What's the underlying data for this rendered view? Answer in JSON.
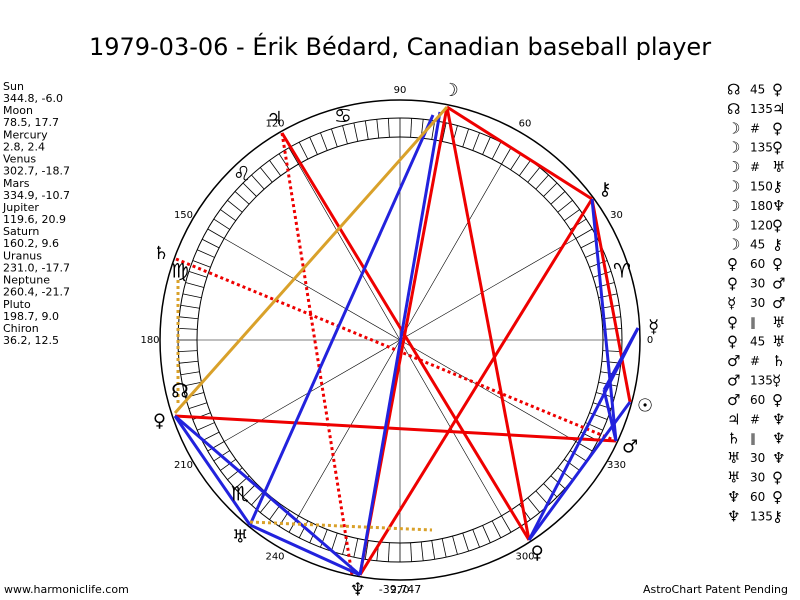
{
  "title": "1979-03-06 - Érik Bédard, Canadian baseball player",
  "planets": [
    {
      "name": "Sun",
      "coords": "344.8, -6.0",
      "glyph": "☉",
      "longitude": 344.8
    },
    {
      "name": "Moon",
      "coords": "78.5, 17.7",
      "glyph": "☽",
      "longitude": 78.5
    },
    {
      "name": "Mercury",
      "coords": "2.8, 2.4",
      "glyph": "☿",
      "longitude": 2.8
    },
    {
      "name": "Venus",
      "coords": "302.7, -18.7",
      "glyph": "♀",
      "longitude": 302.7
    },
    {
      "name": "Mars",
      "coords": "334.9, -10.7",
      "glyph": "♂",
      "longitude": 334.9
    },
    {
      "name": "Jupiter",
      "coords": "119.6, 20.9",
      "glyph": "♃",
      "longitude": 119.6
    },
    {
      "name": "Saturn",
      "coords": "160.2, 9.6",
      "glyph": "♄",
      "longitude": 160.2
    },
    {
      "name": "Uranus",
      "coords": "231.0, -17.7",
      "glyph": "♅",
      "longitude": 231.0
    },
    {
      "name": "Neptune",
      "coords": "260.4, -21.7",
      "glyph": "♆",
      "longitude": 260.4
    },
    {
      "name": "Pluto",
      "coords": "198.7, 9.0",
      "glyph": "♀",
      "longitude": 198.7
    },
    {
      "name": "Chiron",
      "coords": "36.2, 12.5",
      "glyph": "⚷",
      "longitude": 36.2
    }
  ],
  "degree_labels": [
    90,
    60,
    30,
    0,
    330,
    300,
    270,
    240,
    210,
    180,
    150,
    120
  ],
  "signs": [
    "♋",
    "♌",
    "♈",
    "♍",
    "♏",
    "☊"
  ],
  "aspects": [
    [
      "☊",
      "45",
      "♀"
    ],
    [
      "☊",
      "135",
      "♃"
    ],
    [
      "☽",
      "#",
      "♀"
    ],
    [
      "☽",
      "135",
      "♀"
    ],
    [
      "☽",
      "#",
      "♅"
    ],
    [
      "☽",
      "150",
      "⚷"
    ],
    [
      "☽",
      "180",
      "♆"
    ],
    [
      "☽",
      "120",
      "♀"
    ],
    [
      "☽",
      "45",
      "⚷"
    ],
    [
      "♀",
      "60",
      "♀"
    ],
    [
      "♀",
      "30",
      "♂"
    ],
    [
      "☿",
      "30",
      "♂"
    ],
    [
      "♀",
      "∥",
      "♅"
    ],
    [
      "♀",
      "45",
      "♅"
    ],
    [
      "♂",
      "#",
      "♄"
    ],
    [
      "♂",
      "135",
      "☿"
    ],
    [
      "♂",
      "60",
      "♀"
    ],
    [
      "♃",
      "#",
      "♆"
    ],
    [
      "♄",
      "∥",
      "♆"
    ],
    [
      "♅",
      "30",
      "♆"
    ],
    [
      "♅",
      "30",
      "♀"
    ],
    [
      "♆",
      "60",
      "♀"
    ],
    [
      "♆",
      "135",
      "⚷"
    ]
  ],
  "bottom_number": "-39,747",
  "footer_left": "www.harmoniclife.com",
  "footer_right": "AstroChart Patent Pending"
}
